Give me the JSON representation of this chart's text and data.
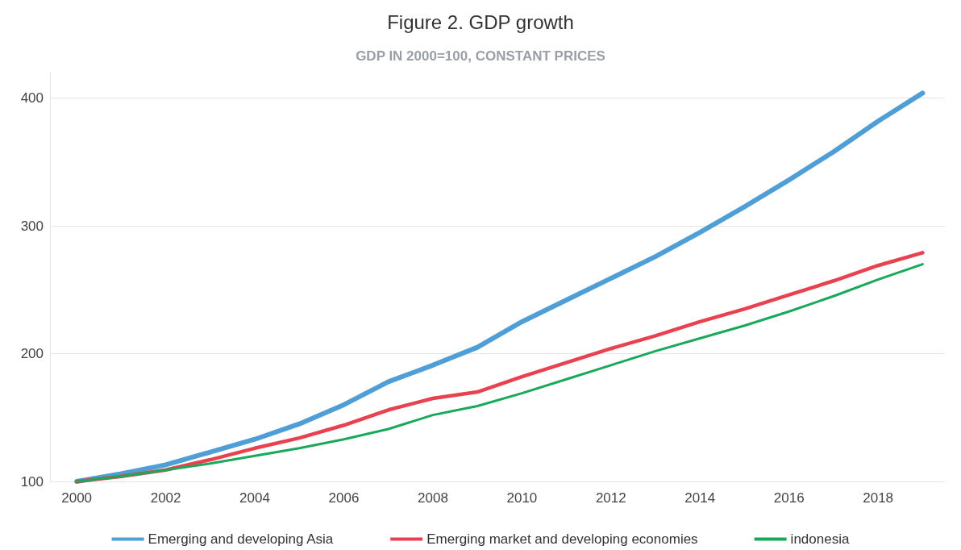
{
  "chart_data": {
    "type": "line",
    "title": "Figure 2. GDP growth",
    "subtitle": "GDP IN 2000=100, CONSTANT PRICES",
    "x": [
      2000,
      2001,
      2002,
      2003,
      2004,
      2005,
      2006,
      2007,
      2008,
      2009,
      2010,
      2011,
      2012,
      2013,
      2014,
      2015,
      2016,
      2017,
      2018,
      2019
    ],
    "series": [
      {
        "name": "Emerging and developing Asia",
        "color": "#4f9fd6",
        "values": [
          100,
          106,
          113,
          123,
          133,
          145,
          160,
          178,
          191,
          205,
          225,
          242,
          259,
          276,
          295,
          315,
          336,
          358,
          382,
          404
        ]
      },
      {
        "name": "Emerging market and developing economies",
        "color": "#e8414f",
        "values": [
          100,
          104,
          109,
          117,
          126,
          134,
          144,
          156,
          165,
          170,
          182,
          193,
          204,
          214,
          225,
          235,
          246,
          257,
          269,
          279
        ]
      },
      {
        "name": "indonesia",
        "color": "#1aa85a",
        "values": [
          100,
          104,
          109,
          114,
          120,
          126,
          133,
          141,
          152,
          159,
          169,
          180,
          191,
          202,
          212,
          222,
          233,
          245,
          258,
          270
        ]
      }
    ],
    "xlim": [
      1999.4,
      2019.5
    ],
    "xticks": [
      2000,
      2002,
      2004,
      2006,
      2008,
      2010,
      2012,
      2014,
      2016,
      2018
    ],
    "ylim": [
      100,
      420
    ],
    "yticks": [
      100,
      200,
      300,
      400
    ],
    "grid": "y",
    "legend": "bottom",
    "marker": "none",
    "line_style": "solid"
  }
}
